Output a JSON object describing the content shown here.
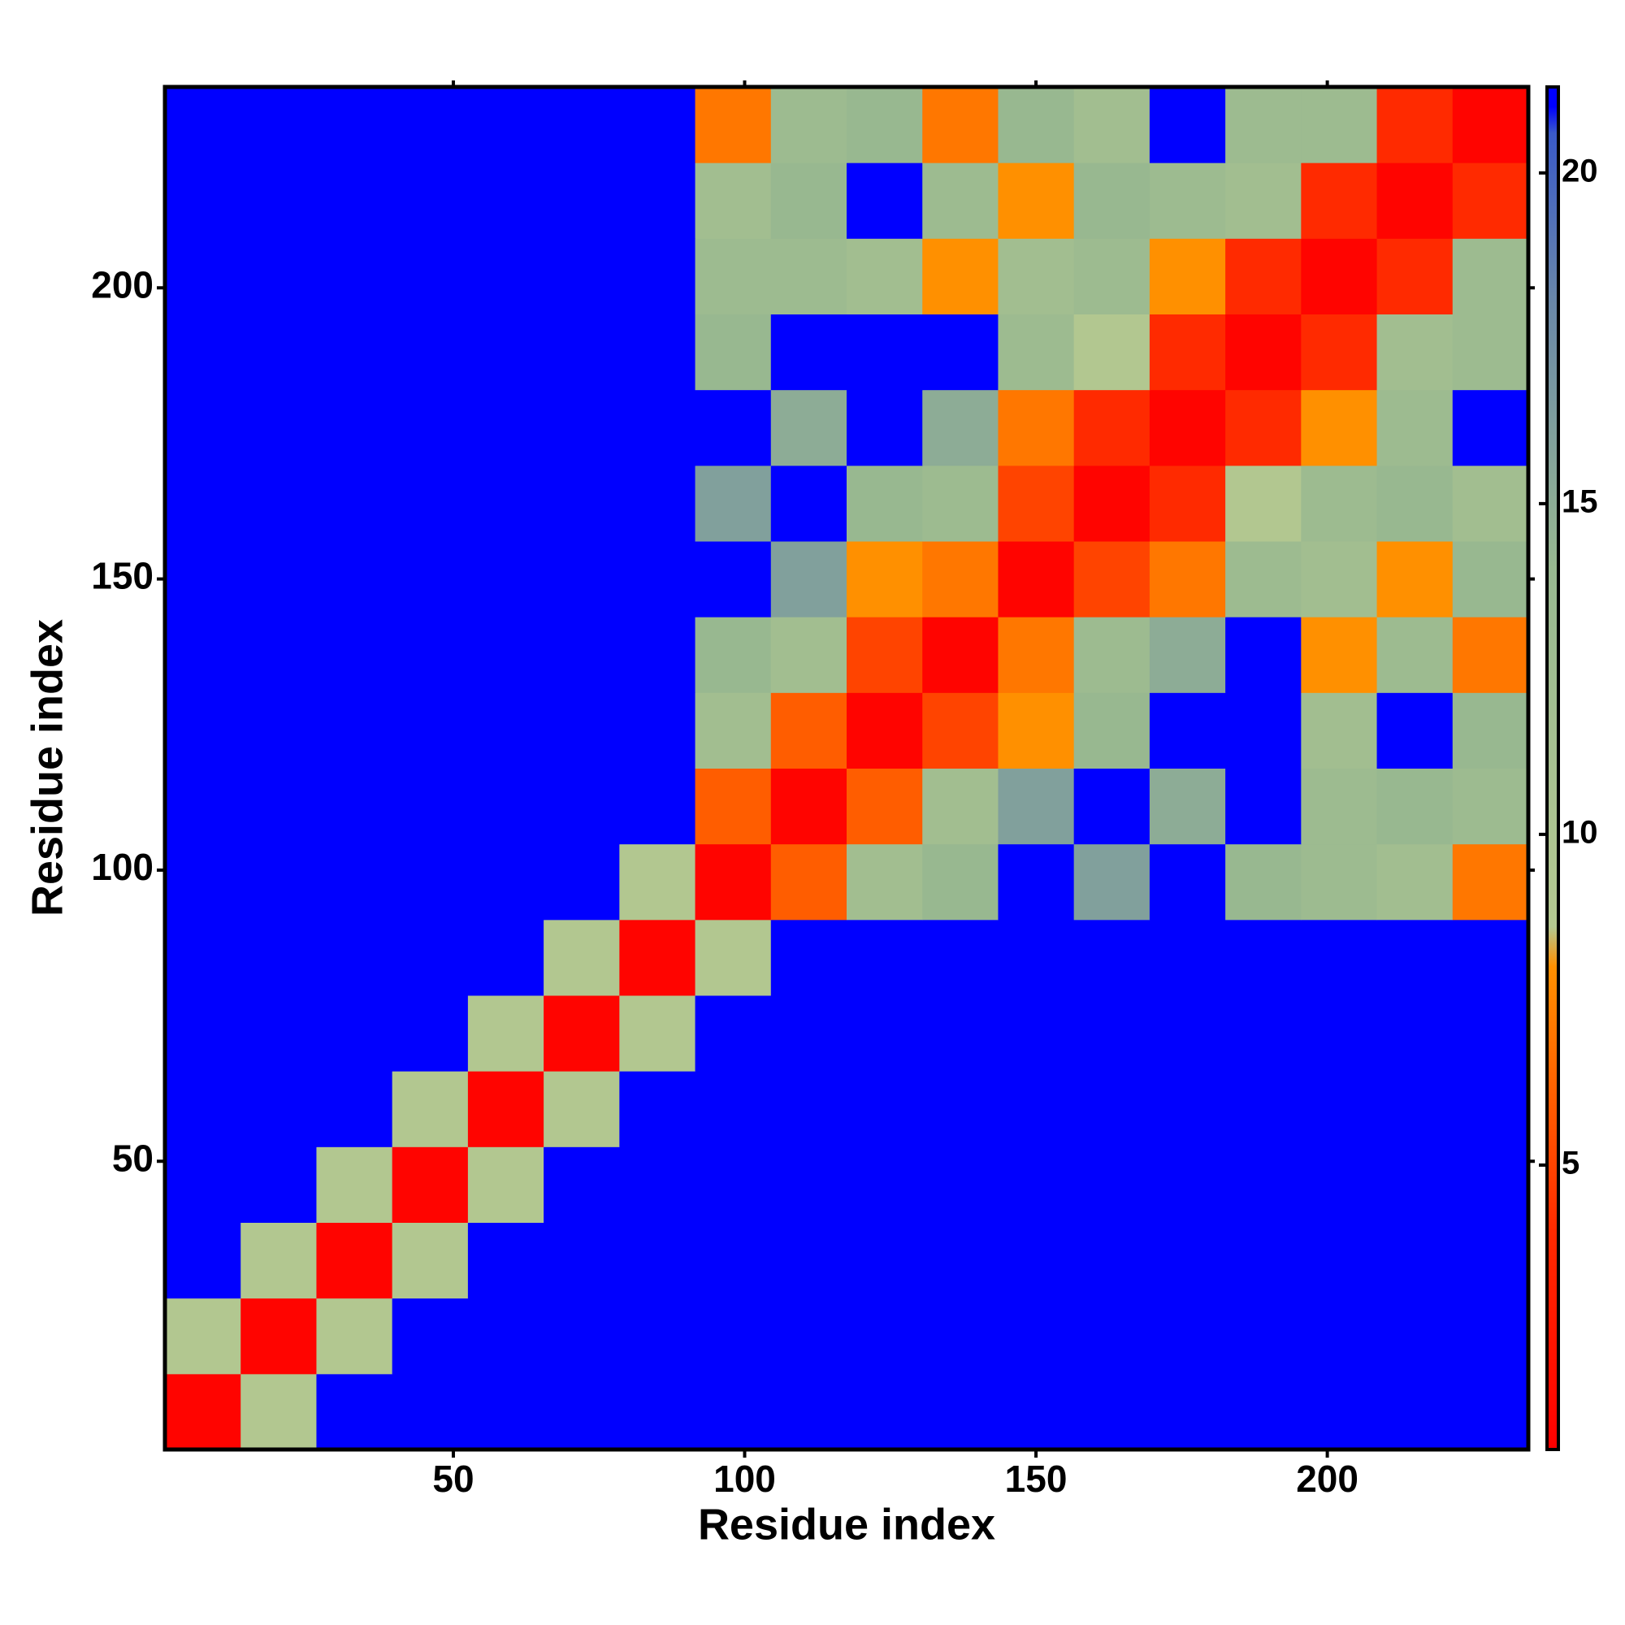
{
  "chart_data": {
    "type": "heatmap",
    "x_label": "Residue index",
    "y_label": "Residue index",
    "x": [
      7,
      20,
      33,
      46,
      59,
      72,
      85,
      98,
      111,
      124,
      137,
      150,
      163,
      176,
      189,
      202,
      215,
      228
    ],
    "y": [
      7,
      20,
      33,
      46,
      59,
      72,
      85,
      98,
      111,
      124,
      137,
      150,
      163,
      176,
      189,
      202,
      215,
      228
    ],
    "z": [
      [
        1,
        9,
        21,
        21,
        21,
        21,
        21,
        21,
        21,
        21,
        21,
        21,
        21,
        21,
        21,
        21,
        21,
        21
      ],
      [
        9,
        1,
        9,
        21,
        21,
        21,
        21,
        21,
        21,
        21,
        21,
        21,
        21,
        21,
        21,
        21,
        21,
        21
      ],
      [
        21,
        9,
        1,
        9,
        21,
        21,
        21,
        21,
        21,
        21,
        21,
        21,
        21,
        21,
        21,
        21,
        21,
        21
      ],
      [
        21,
        21,
        9,
        1,
        9,
        21,
        21,
        21,
        21,
        21,
        21,
        21,
        21,
        21,
        21,
        21,
        21,
        21
      ],
      [
        21,
        21,
        21,
        9,
        1,
        9,
        21,
        21,
        21,
        21,
        21,
        21,
        21,
        21,
        21,
        21,
        21,
        21
      ],
      [
        21,
        21,
        21,
        21,
        9,
        1,
        9,
        21,
        21,
        21,
        21,
        21,
        21,
        21,
        21,
        21,
        21,
        21
      ],
      [
        21,
        21,
        21,
        21,
        21,
        9,
        1,
        9,
        21,
        21,
        21,
        21,
        21,
        21,
        21,
        21,
        21,
        21
      ],
      [
        21,
        21,
        21,
        21,
        21,
        21,
        9,
        1,
        6,
        12,
        14,
        21,
        16,
        21,
        14,
        13,
        12,
        7
      ],
      [
        21,
        21,
        21,
        21,
        21,
        21,
        21,
        6,
        1,
        6,
        12,
        16,
        21,
        15,
        21,
        13,
        14,
        13
      ],
      [
        21,
        21,
        21,
        21,
        21,
        21,
        21,
        12,
        6,
        1,
        5,
        8,
        14,
        21,
        21,
        12,
        21,
        14
      ],
      [
        21,
        21,
        21,
        21,
        21,
        21,
        21,
        14,
        12,
        5,
        1,
        7,
        13,
        15,
        21,
        8,
        13,
        7
      ],
      [
        21,
        21,
        21,
        21,
        21,
        21,
        21,
        21,
        16,
        8,
        7,
        1,
        5,
        7,
        13,
        12,
        8,
        14
      ],
      [
        21,
        21,
        21,
        21,
        21,
        21,
        21,
        16,
        21,
        14,
        13,
        5,
        1,
        4,
        9,
        13,
        14,
        12
      ],
      [
        21,
        21,
        21,
        21,
        21,
        21,
        21,
        21,
        15,
        21,
        15,
        7,
        4,
        1,
        4,
        8,
        13,
        21
      ],
      [
        21,
        21,
        21,
        21,
        21,
        21,
        21,
        14,
        21,
        21,
        21,
        13,
        9,
        4,
        1,
        4,
        12,
        13
      ],
      [
        21,
        21,
        21,
        21,
        21,
        21,
        21,
        13,
        13,
        12,
        8,
        12,
        13,
        8,
        4,
        1,
        4,
        13
      ],
      [
        21,
        21,
        21,
        21,
        21,
        21,
        21,
        12,
        14,
        21,
        13,
        8,
        14,
        13,
        12,
        4,
        1,
        4
      ],
      [
        21,
        21,
        21,
        21,
        21,
        21,
        21,
        7,
        13,
        14,
        7,
        14,
        12,
        21,
        13,
        13,
        4,
        1
      ]
    ],
    "cell_size": 13,
    "xlim": [
      0.5,
      234.5
    ],
    "ylim": [
      0.5,
      234.5
    ],
    "xticks": [
      50,
      100,
      150,
      200
    ],
    "yticks": [
      50,
      100,
      150,
      200
    ],
    "zlim": [
      0.7,
      21.3
    ],
    "zticks": [
      5,
      10,
      15,
      20
    ],
    "colorscale": [
      [
        0.7,
        "#ff0000"
      ],
      [
        4,
        "#ff2a00"
      ],
      [
        8,
        "#ff9000"
      ],
      [
        8.6,
        "#b4c890"
      ],
      [
        14,
        "#98b890"
      ],
      [
        18,
        "#6a88a8"
      ],
      [
        20.6,
        "#3a5ac8"
      ],
      [
        21,
        "#0000ff"
      ],
      [
        21.3,
        "#0000ff"
      ]
    ]
  }
}
